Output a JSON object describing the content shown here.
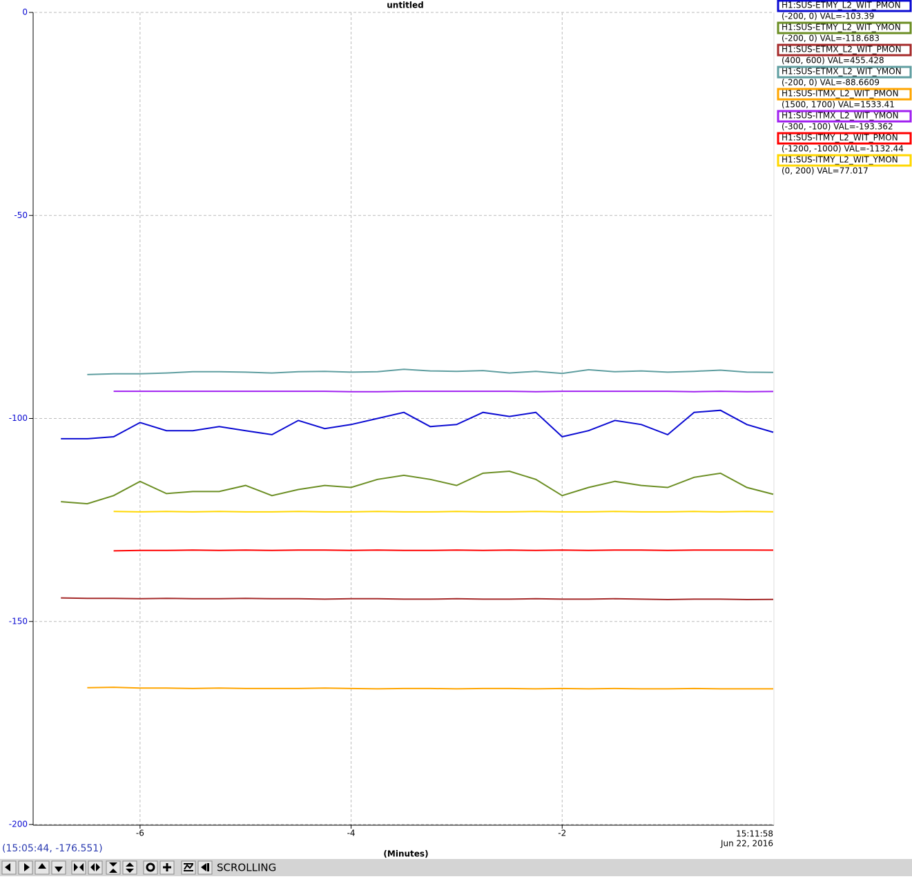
{
  "chart_data": {
    "type": "line",
    "title": "untitled",
    "x_label": "(Minutes)",
    "time_label": "15:11:58",
    "date_label": "Jun 22, 2016",
    "x": [
      -7,
      -6.75,
      -6.5,
      -6.25,
      -6,
      -5.75,
      -5.5,
      -5.25,
      -5,
      -4.75,
      -4.5,
      -4.25,
      -4,
      -3.75,
      -3.5,
      -3.25,
      -3,
      -2.75,
      -2.5,
      -2.25,
      -2,
      -1.75,
      -1.5,
      -1.25,
      -1,
      -0.75,
      -0.5,
      -0.25,
      0
    ],
    "xlim": [
      -7,
      0
    ],
    "xticks": [
      -6,
      -4,
      -2
    ],
    "ylim": [
      -200,
      0
    ],
    "yticks": [
      0,
      -50,
      -100,
      -150,
      -200
    ],
    "grid": true,
    "series": [
      {
        "name": "H1:SUS-ETMY_L2_WIT_PMON",
        "info": "(-200, 0) VAL=-103.39",
        "color": "#0a0ad2",
        "ylim": [
          -200,
          0
        ],
        "values": [
          null,
          -105,
          -105,
          -104.5,
          -101,
          -103,
          -103,
          -102,
          -103,
          -104,
          -100.5,
          -102.5,
          -101.5,
          -100,
          -98.5,
          -102,
          -101.5,
          -98.5,
          -99.5,
          -98.5,
          -104.5,
          -103,
          -100.5,
          -101.5,
          -104,
          -98.5,
          -98,
          -101.5,
          -103.39
        ]
      },
      {
        "name": "H1:SUS-ETMY_L2_WIT_YMON",
        "info": "(-200, 0) VAL=-118.683",
        "color": "#6b8e23",
        "ylim": [
          -200,
          0
        ],
        "values": [
          null,
          -120.5,
          -121,
          -119,
          -115.5,
          -118.5,
          -118,
          -118,
          -116.5,
          -119,
          -117.5,
          -116.5,
          -117,
          -115,
          -114,
          -115,
          -116.5,
          -113.5,
          -113,
          -115,
          -119,
          -117,
          -115.5,
          -116.5,
          -117,
          -114.5,
          -113.5,
          -117,
          -118.683
        ]
      },
      {
        "name": "H1:SUS-ETMX_L2_WIT_PMON",
        "info": "(400, 600) VAL=455.428",
        "color": "#a52a2a",
        "ylim": [
          400,
          600
        ],
        "values": [
          null,
          455.8,
          455.7,
          455.7,
          455.6,
          455.7,
          455.6,
          455.6,
          455.7,
          455.6,
          455.6,
          455.5,
          455.6,
          455.6,
          455.5,
          455.5,
          455.6,
          455.5,
          455.5,
          455.6,
          455.5,
          455.5,
          455.6,
          455.5,
          455.4,
          455.5,
          455.5,
          455.4,
          455.428
        ]
      },
      {
        "name": "H1:SUS-ETMX_L2_WIT_YMON",
        "info": "(-200, 0) VAL=-88.6609",
        "color": "#5f9ea0",
        "ylim": [
          -200,
          0
        ],
        "values": [
          null,
          null,
          -89.2,
          -89,
          -89,
          -88.8,
          -88.5,
          -88.5,
          -88.6,
          -88.8,
          -88.5,
          -88.4,
          -88.6,
          -88.5,
          -87.9,
          -88.3,
          -88.4,
          -88.2,
          -88.8,
          -88.4,
          -88.9,
          -88,
          -88.5,
          -88.3,
          -88.6,
          -88.4,
          -88.1,
          -88.6,
          -88.6609
        ]
      },
      {
        "name": "H1:SUS-ITMX_L2_WIT_PMON",
        "info": "(1500, 1700) VAL=1533.41",
        "color": "#ffa500",
        "ylim": [
          1500,
          1700
        ],
        "values": [
          null,
          null,
          1533.7,
          1533.8,
          1533.6,
          1533.6,
          1533.5,
          1533.6,
          1533.5,
          1533.5,
          1533.5,
          1533.6,
          1533.5,
          1533.4,
          1533.5,
          1533.5,
          1533.4,
          1533.5,
          1533.5,
          1533.4,
          1533.5,
          1533.4,
          1533.5,
          1533.4,
          1533.4,
          1533.5,
          1533.4,
          1533.4,
          1533.41
        ]
      },
      {
        "name": "H1:SUS-ITMX_L2_WIT_YMON",
        "info": "(-300, -100) VAL=-193.362",
        "color": "#a020f0",
        "ylim": [
          -300,
          -100
        ],
        "values": [
          null,
          null,
          null,
          -193.3,
          -193.3,
          -193.3,
          -193.3,
          -193.3,
          -193.3,
          -193.3,
          -193.3,
          -193.3,
          -193.4,
          -193.4,
          -193.3,
          -193.3,
          -193.3,
          -193.3,
          -193.3,
          -193.4,
          -193.3,
          -193.3,
          -193.3,
          -193.3,
          -193.3,
          -193.4,
          -193.3,
          -193.4,
          -193.362
        ]
      },
      {
        "name": "H1:SUS-ITMY_L2_WIT_PMON",
        "info": "(-1200, -1000) VAL=-1132.44",
        "color": "#ff0000",
        "ylim": [
          -1200,
          -1000
        ],
        "values": [
          null,
          null,
          null,
          -1132.6,
          -1132.5,
          -1132.5,
          -1132.4,
          -1132.5,
          -1132.4,
          -1132.5,
          -1132.4,
          -1132.4,
          -1132.5,
          -1132.4,
          -1132.5,
          -1132.5,
          -1132.4,
          -1132.5,
          -1132.4,
          -1132.5,
          -1132.4,
          -1132.5,
          -1132.4,
          -1132.4,
          -1132.5,
          -1132.4,
          -1132.4,
          -1132.4,
          -1132.44
        ]
      },
      {
        "name": "H1:SUS-ITMY_L2_WIT_YMON",
        "info": "(0, 200) VAL=77.017",
        "color": "#ffd700",
        "ylim": [
          0,
          200
        ],
        "values": [
          null,
          null,
          null,
          77.1,
          77.0,
          77.1,
          77.0,
          77.1,
          77.0,
          77.0,
          77.1,
          77.0,
          77.0,
          77.1,
          77.0,
          77.0,
          77.1,
          77.0,
          77.0,
          77.1,
          77.0,
          77.0,
          77.1,
          77.0,
          77.0,
          77.1,
          77.0,
          77.1,
          77.017
        ]
      }
    ]
  },
  "cursor_readout": "(15:05:44, -176.551)",
  "toolbar": {
    "mode": "SCROLLING"
  }
}
